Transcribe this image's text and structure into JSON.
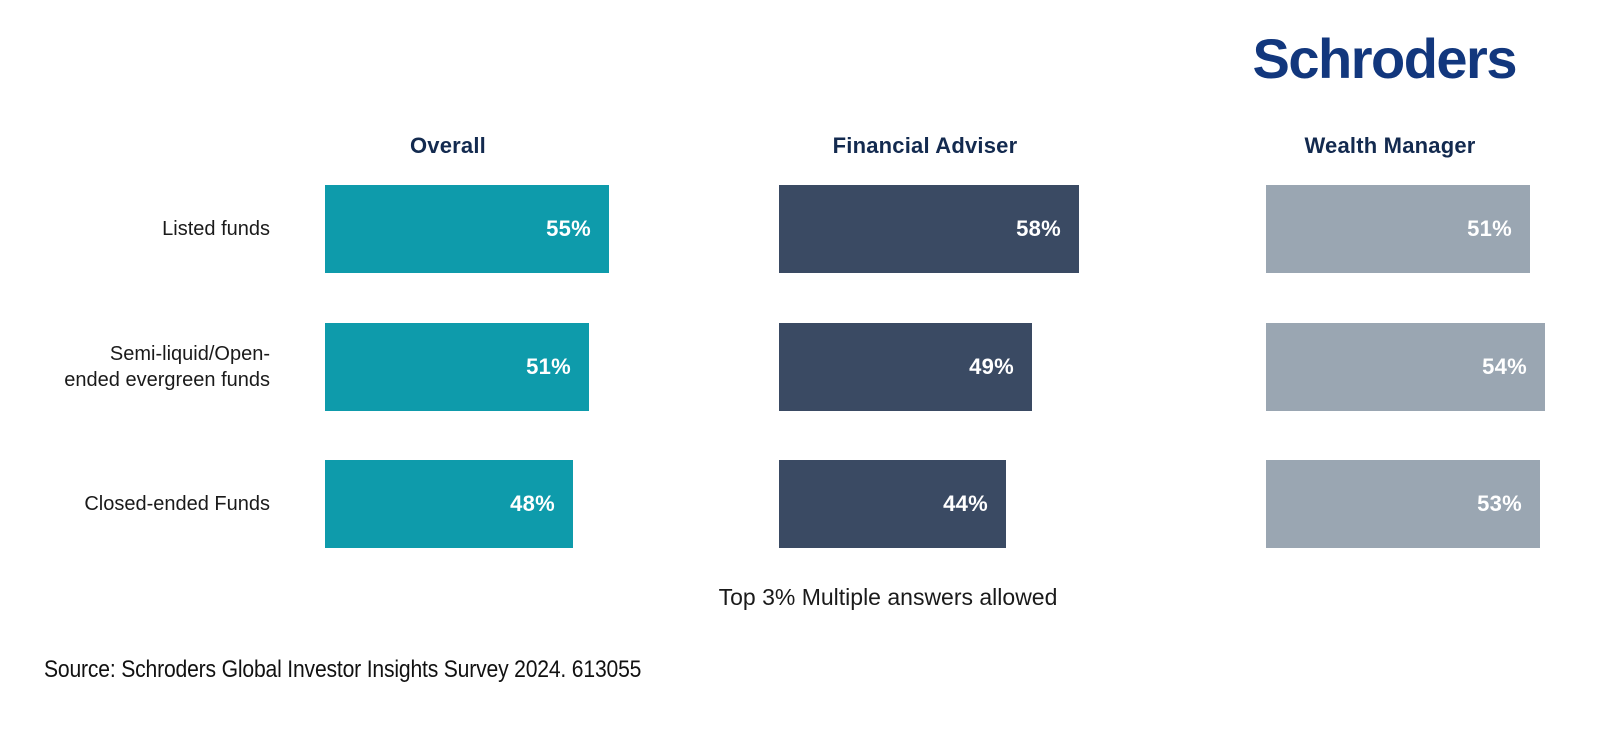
{
  "logo": {
    "text": "Schroders",
    "color": "#12377d"
  },
  "chart_data": {
    "type": "bar",
    "orientation": "horizontal",
    "title": "",
    "categories": [
      "Listed funds",
      "Semi-liquid/Open-ended evergreen funds",
      "Closed-ended Funds"
    ],
    "category_lines": [
      [
        "Listed funds"
      ],
      [
        "Semi-liquid/Open-",
        "ended evergreen funds"
      ],
      [
        "Closed-ended Funds"
      ]
    ],
    "series": [
      {
        "name": "Overall",
        "color": "#0e9bab",
        "values": [
          55,
          51,
          48
        ]
      },
      {
        "name": "Financial Adviser",
        "color": "#3a4a63",
        "values": [
          58,
          49,
          44
        ]
      },
      {
        "name": "Wealth Manager",
        "color": "#9aa6b2",
        "values": [
          51,
          54,
          53
        ]
      }
    ],
    "value_suffix": "%",
    "xlim": [
      0,
      60
    ],
    "grid": false,
    "legend_position": "column-headers",
    "caption": "Top 3% Multiple answers allowed"
  },
  "footer": {
    "source": "Source: Schroders Global Investor Insights Survey 2024. 613055"
  },
  "text_colors": {
    "header": "#132a4f",
    "label": "#1a1a1a",
    "bar_value": "#ffffff"
  }
}
